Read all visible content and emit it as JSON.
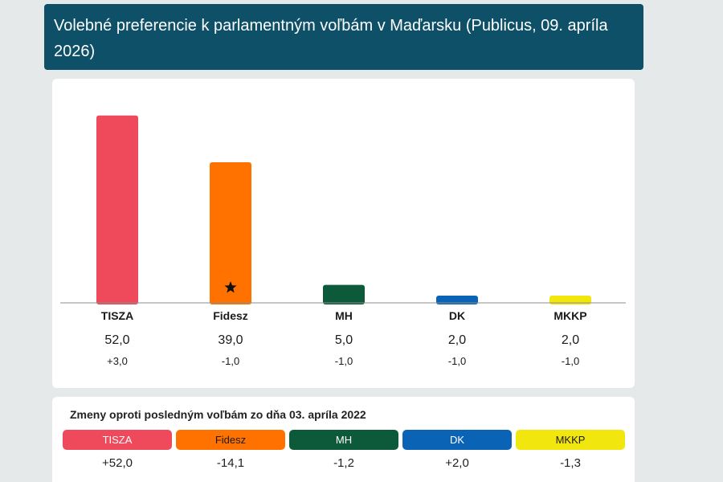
{
  "title": "Volebné preferencie k parlamentným voľbám v Maďarsku (Publicus, 09. apríla 2026)",
  "chart_data": {
    "type": "bar",
    "categories": [
      "TISZA",
      "Fidesz",
      "MH",
      "DK",
      "MKKP"
    ],
    "values": [
      52.0,
      39.0,
      5.0,
      2.0,
      2.0
    ],
    "value_labels": [
      "52,0",
      "39,0",
      "5,0",
      "2,0",
      "2,0"
    ],
    "change_labels": [
      "+3,0",
      "-1,0",
      "-1,0",
      "-1,0",
      "-1,0"
    ],
    "colors": [
      "#ee4a5b",
      "#ff7200",
      "#0d5a3a",
      "#0a63b5",
      "#f2e60f"
    ],
    "marker": {
      "category": "Fidesz",
      "icon": "star-icon"
    },
    "ylim": [
      0,
      55
    ]
  },
  "changes": {
    "title": "Zmeny oproti posledným voľbám zo dňa 03. apríla 2022",
    "items": [
      {
        "label": "TISZA",
        "value": "+52,0",
        "color": "#ee4a5b",
        "text_color": "#ffffff"
      },
      {
        "label": "Fidesz",
        "value": "-14,1",
        "color": "#ff7200",
        "text_color": "#1a1a1a"
      },
      {
        "label": "MH",
        "value": "-1,2",
        "color": "#0d5a3a",
        "text_color": "#ffffff"
      },
      {
        "label": "DK",
        "value": "+2,0",
        "color": "#0a63b5",
        "text_color": "#ffffff"
      },
      {
        "label": "MKKP",
        "value": "-1,3",
        "color": "#f2e60f",
        "text_color": "#1a1a1a"
      }
    ]
  }
}
